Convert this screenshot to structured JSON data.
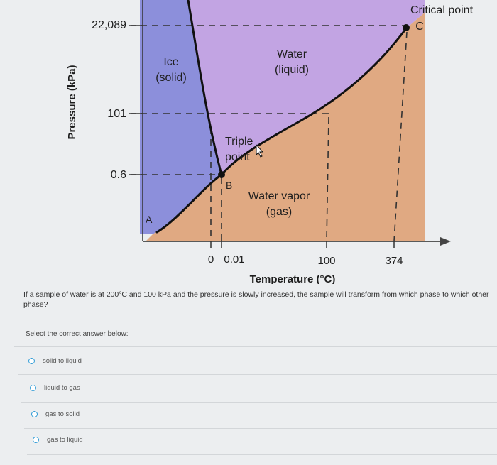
{
  "diagram": {
    "y_axis_label": "Pressure (kPa)",
    "x_axis_label": "Temperature (°C)",
    "y_ticks": [
      "22,089",
      "101",
      "0.6"
    ],
    "x_ticks": [
      "0",
      "0.01",
      "100",
      "374"
    ],
    "regions": {
      "solid": [
        "Ice",
        "(solid)"
      ],
      "liquid": [
        "Water",
        "(liquid)"
      ],
      "gas": [
        "Water vapor",
        "(gas)"
      ]
    },
    "points": {
      "critical": [
        "Critical point",
        "C"
      ],
      "triple": [
        "Triple",
        "point"
      ],
      "triple_letter": "B",
      "start_letter": "A"
    },
    "colors": {
      "solid": "#8c8fdb",
      "liquid": "#c2a4e3",
      "gas": "#e0a982",
      "curve": "#111111",
      "dashed": "#333333"
    }
  },
  "question": "If a sample of water is at 200°C and 100 kPa and the pressure is slowly increased, the sample will transform from which phase to which other phase?",
  "prompt": "Select the correct answer below:",
  "options": [
    "solid to liquid",
    "liquid to gas",
    "gas to solid",
    "gas to liquid"
  ]
}
